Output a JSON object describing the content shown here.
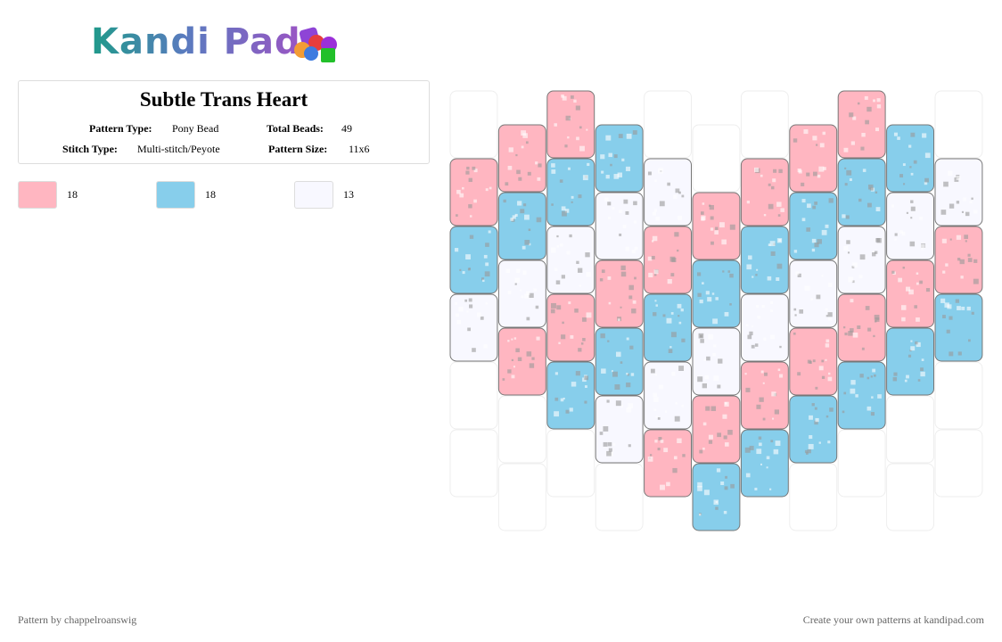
{
  "header": {
    "logo": "Kandi Pad"
  },
  "pattern": {
    "title": "Subtle Trans Heart",
    "fields": [
      {
        "label": "Pattern Type:",
        "value": "Pony Bead"
      },
      {
        "label": "Total Beads:",
        "value": "49"
      },
      {
        "label": "Stitch Type:",
        "value": "Multi-stitch/Peyote"
      },
      {
        "label": "Pattern Size:",
        "value": "11x6"
      }
    ]
  },
  "palette": [
    {
      "color": "#ffb6c1",
      "count": 18
    },
    {
      "color": "#87ceeb",
      "count": 18
    },
    {
      "color": "#f8f8ff",
      "count": 13
    }
  ],
  "grid": [
    [
      null,
      0,
      1,
      2,
      null,
      null
    ],
    [
      0,
      1,
      2,
      0,
      null,
      null
    ],
    [
      0,
      1,
      2,
      0,
      1,
      null
    ],
    [
      1,
      2,
      0,
      1,
      2,
      null
    ],
    [
      null,
      2,
      0,
      1,
      2,
      0
    ],
    [
      null,
      0,
      1,
      2,
      0,
      1
    ],
    [
      null,
      0,
      1,
      2,
      0,
      1
    ],
    [
      0,
      1,
      2,
      0,
      1,
      null
    ],
    [
      0,
      1,
      2,
      0,
      1,
      null
    ],
    [
      1,
      2,
      0,
      1,
      null,
      null
    ],
    [
      null,
      2,
      0,
      1,
      null,
      null
    ]
  ],
  "footer": {
    "left": "Pattern by chappelroanswig",
    "right": "Create your own patterns at kandipad.com"
  }
}
